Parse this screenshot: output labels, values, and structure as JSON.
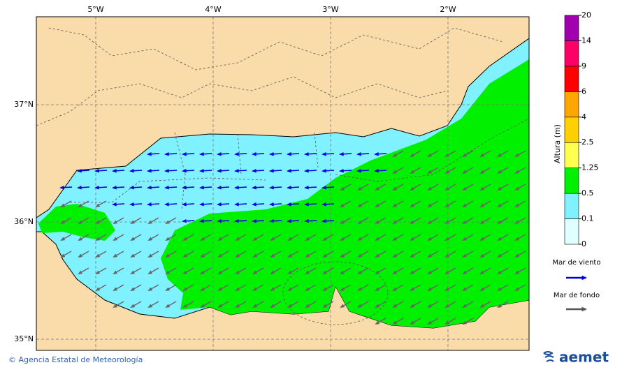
{
  "map": {
    "lon_labels": [
      "5°W",
      "4°W",
      "3°W",
      "2°W"
    ],
    "lat_labels": [
      "37°N",
      "36°N",
      "35°N"
    ],
    "colorbar": {
      "title": "Altura (m)",
      "levels": [
        0,
        0.1,
        0.5,
        1.25,
        2.5,
        4,
        6,
        9,
        14,
        20
      ],
      "colors": [
        "#e0ffff",
        "#80f2ff",
        "#00f000",
        "#ffff50",
        "#ffd000",
        "#ffa500",
        "#ff0000",
        "#ff0066",
        "#a000b0"
      ]
    },
    "legend": [
      {
        "label": "Mar de viento",
        "color": "#0000dd"
      },
      {
        "label": "Mar de fondo",
        "color": "#555555"
      }
    ],
    "footer": "© Agencia Estatal de Meteorología",
    "logo": "aemet"
  }
}
